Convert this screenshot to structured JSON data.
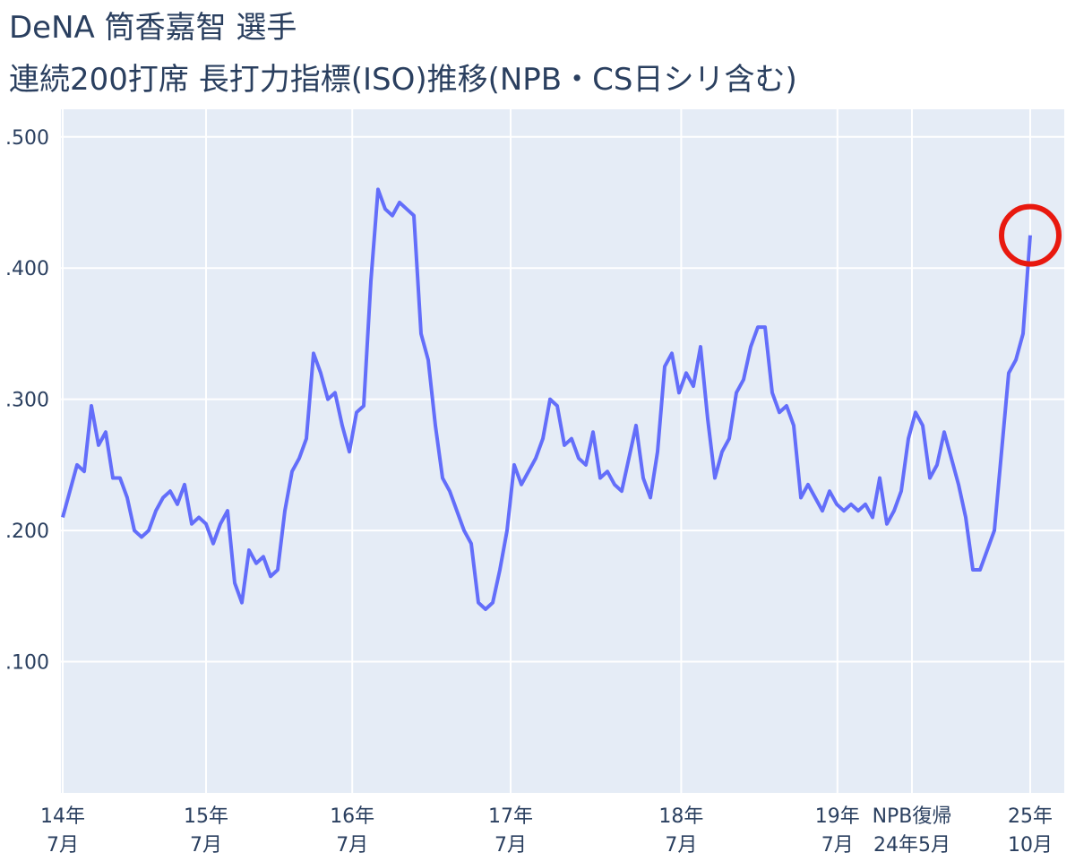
{
  "chart_data": {
    "type": "line",
    "title": "DeNA 筒香嘉智 選手",
    "subtitle": "連続200打席 長打力指標(ISO)推移(NPB・CS日シリ含む)",
    "color": "#636efa",
    "values": [
      0.21,
      0.23,
      0.25,
      0.245,
      0.295,
      0.265,
      0.275,
      0.24,
      0.24,
      0.225,
      0.2,
      0.195,
      0.2,
      0.215,
      0.225,
      0.23,
      0.22,
      0.235,
      0.205,
      0.21,
      0.205,
      0.19,
      0.205,
      0.215,
      0.16,
      0.145,
      0.185,
      0.175,
      0.18,
      0.165,
      0.17,
      0.215,
      0.245,
      0.255,
      0.27,
      0.335,
      0.32,
      0.3,
      0.305,
      0.28,
      0.26,
      0.29,
      0.295,
      0.39,
      0.46,
      0.445,
      0.44,
      0.45,
      0.445,
      0.44,
      0.35,
      0.33,
      0.28,
      0.24,
      0.23,
      0.215,
      0.2,
      0.19,
      0.145,
      0.14,
      0.145,
      0.17,
      0.2,
      0.25,
      0.235,
      0.245,
      0.255,
      0.27,
      0.3,
      0.295,
      0.265,
      0.27,
      0.255,
      0.25,
      0.275,
      0.24,
      0.245,
      0.235,
      0.23,
      0.255,
      0.28,
      0.24,
      0.225,
      0.26,
      0.325,
      0.335,
      0.305,
      0.32,
      0.31,
      0.34,
      0.285,
      0.24,
      0.26,
      0.27,
      0.305,
      0.315,
      0.34,
      0.355,
      0.355,
      0.305,
      0.29,
      0.295,
      0.28,
      0.225,
      0.235,
      0.225,
      0.215,
      0.23,
      0.22,
      0.215,
      0.22,
      0.215,
      0.22,
      0.21,
      0.24,
      0.205,
      0.215,
      0.23,
      0.27,
      0.29,
      0.28,
      0.24,
      0.25,
      0.275,
      0.255,
      0.235,
      0.21,
      0.17,
      0.17,
      0.185,
      0.2,
      0.26,
      0.32,
      0.33,
      0.35,
      0.425
    ],
    "xlim": [
      -0.25,
      139.75
    ],
    "xticks": [
      {
        "value": 0,
        "label": "14年\n7月"
      },
      {
        "value": 20,
        "label": "15年\n7月"
      },
      {
        "value": 40.4,
        "label": "16年\n7月"
      },
      {
        "value": 62.5,
        "label": "17年\n7月"
      },
      {
        "value": 86.3,
        "label": "18年\n7月"
      },
      {
        "value": 108.1,
        "label": "19年\n7月"
      },
      {
        "value": 118.5,
        "label": "NPB復帰\n24年5月"
      },
      {
        "value": 135,
        "label": "25年\n10月"
      }
    ],
    "ylim": [
      0,
      0.521
    ],
    "yticks": [
      {
        "value": 0.1,
        "label": ".100"
      },
      {
        "value": 0.2,
        "label": ".200"
      },
      {
        "value": 0.3,
        "label": ".300"
      },
      {
        "value": 0.4,
        "label": ".400"
      },
      {
        "value": 0.5,
        "label": ".500"
      }
    ],
    "grid": true
  }
}
